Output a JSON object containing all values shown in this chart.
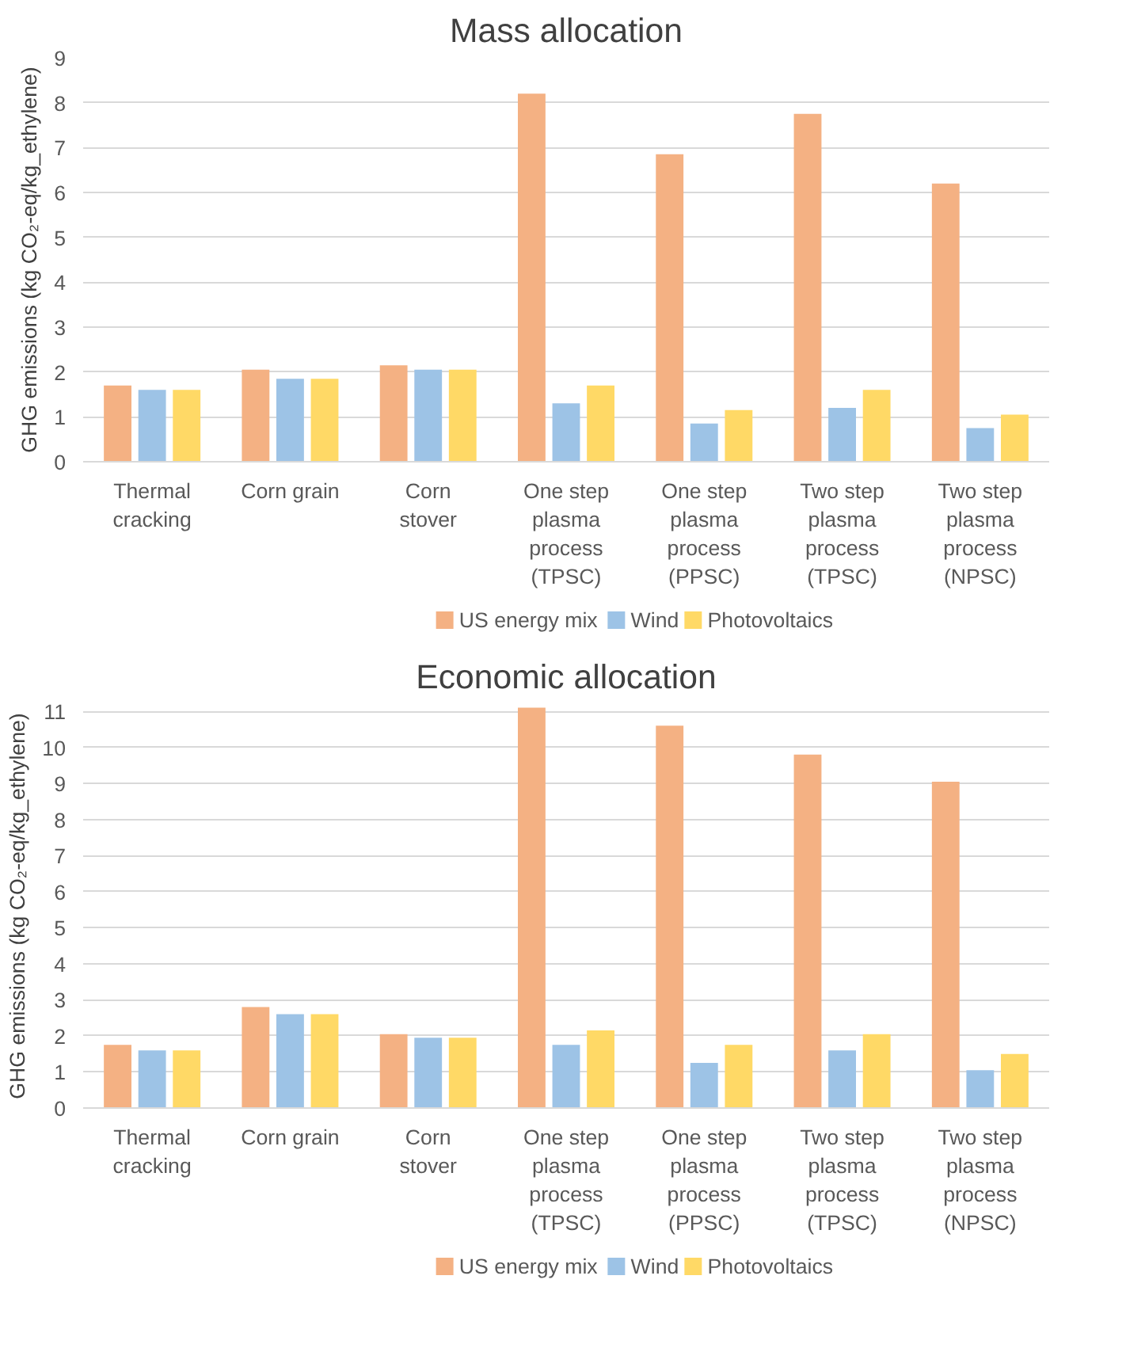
{
  "chart_data": [
    {
      "type": "bar",
      "title": "Mass allocation",
      "ylabel": "GHG emissions (kg CO₂-eq/kg_ethylene)",
      "categories": [
        "Thermal cracking",
        "Corn grain",
        "Corn stover",
        "One step plasma process (TPSC)",
        "One step plasma process (PPSC)",
        "Two step plasma process (TPSC)",
        "Two step plasma process (NPSC)"
      ],
      "series": [
        {
          "name": "US energy mix",
          "color": "#f4b183",
          "values": [
            1.7,
            2.05,
            2.15,
            8.2,
            6.85,
            7.75,
            6.2
          ]
        },
        {
          "name": "Wind",
          "color": "#9dc3e6",
          "values": [
            1.6,
            1.85,
            2.05,
            1.3,
            0.85,
            1.2,
            0.75
          ]
        },
        {
          "name": "Photovoltaics",
          "color": "#ffd966",
          "values": [
            1.6,
            1.85,
            2.05,
            1.7,
            1.15,
            1.6,
            1.05
          ]
        }
      ],
      "ylim": [
        0,
        9
      ],
      "yticks": [
        0,
        1,
        2,
        3,
        4,
        5,
        6,
        7,
        8,
        9
      ],
      "grid": "y",
      "legend": "bottom"
    },
    {
      "type": "bar",
      "title": "Economic allocation",
      "ylabel": "GHG emissions (kg CO₂-eq/kg_ethylene)",
      "categories": [
        "Thermal cracking",
        "Corn grain",
        "Corn stover",
        "One step plasma process (TPSC)",
        "One step plasma process (PPSC)",
        "Two step plasma process (TPSC)",
        "Two step plasma process (NPSC)"
      ],
      "series": [
        {
          "name": "US energy mix",
          "color": "#f4b183",
          "values": [
            1.75,
            2.8,
            2.05,
            11.1,
            10.6,
            9.8,
            9.05
          ]
        },
        {
          "name": "Wind",
          "color": "#9dc3e6",
          "values": [
            1.6,
            2.6,
            1.95,
            1.75,
            1.25,
            1.6,
            1.05
          ]
        },
        {
          "name": "Photovoltaics",
          "color": "#ffd966",
          "values": [
            1.6,
            2.6,
            1.95,
            2.15,
            1.75,
            2.05,
            1.5
          ]
        }
      ],
      "ylim": [
        0,
        11.2
      ],
      "yticks": [
        0,
        1,
        2,
        3,
        4,
        5,
        6,
        7,
        8,
        9,
        10,
        11
      ],
      "grid": "y",
      "legend": "bottom"
    }
  ]
}
